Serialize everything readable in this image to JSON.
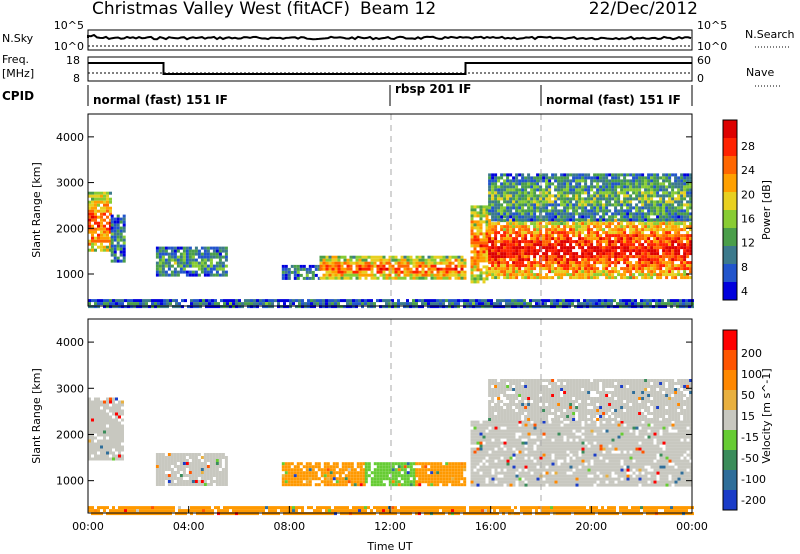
{
  "header": {
    "station": "Christmas Valley West (fitACF)",
    "beam": "Beam 12",
    "date": "22/Dec/2012"
  },
  "top_panels": {
    "nsky_label": "N.Sky",
    "nsky_ticks": [
      "10^5",
      "10^0"
    ],
    "nsearch_label": "N.Search",
    "nsearch_ticks": [
      "10^5",
      "10^0"
    ],
    "freq_label_1": "Freq.",
    "freq_label_2": "[MHz]",
    "freq_ticks": [
      "18",
      "8"
    ],
    "nave_label": "Nave",
    "nave_ticks": [
      "60",
      "0"
    ],
    "cpid_label": "CPID",
    "cpid_modes": [
      {
        "label": "normal (fast) 151 IF",
        "start_hour": 0
      },
      {
        "label": "rbsp 201 IF",
        "start_hour": 12
      },
      {
        "label": "normal (fast) 151 IF",
        "start_hour": 18
      }
    ]
  },
  "chart_data": [
    {
      "type": "heatmap",
      "parameter": "power",
      "ylabel": "Slant Range [km]",
      "ylim": [
        300,
        4500
      ],
      "yticks": [
        1000,
        2000,
        3000,
        4000
      ],
      "xlim_hours": [
        0,
        24
      ],
      "colorbar_label": "Power [dB]",
      "colorbar_ticks": [
        "28",
        "24",
        "20",
        "16",
        "12",
        "8",
        "4"
      ],
      "colorscale": [
        "#0000dd",
        "#2255cc",
        "#3c7a8c",
        "#4a9e4a",
        "#88cc33",
        "#e8d020",
        "#ffa000",
        "#ff6600",
        "#ff2200",
        "#dd0000"
      ],
      "echo_regions": [
        {
          "t0": 0.0,
          "t1": 0.9,
          "r0": 1500,
          "r1": 2800,
          "level": 0.85
        },
        {
          "t0": 0.9,
          "t1": 1.4,
          "r0": 1300,
          "r1": 2300,
          "level": 0.3
        },
        {
          "t0": 2.7,
          "t1": 5.5,
          "r0": 950,
          "r1": 1600,
          "level": 0.35
        },
        {
          "t0": 7.7,
          "t1": 9.2,
          "r0": 900,
          "r1": 1200,
          "level": 0.3
        },
        {
          "t0": 9.2,
          "t1": 15.0,
          "r0": 900,
          "r1": 1400,
          "level": 0.8
        },
        {
          "t0": 15.2,
          "t1": 15.9,
          "r0": 800,
          "r1": 2500,
          "level": 0.75
        },
        {
          "t0": 15.9,
          "t1": 24.0,
          "r0": 900,
          "r1": 2200,
          "level": 0.95
        },
        {
          "t0": 15.9,
          "t1": 24.0,
          "r0": 2200,
          "r1": 3200,
          "level": 0.4
        },
        {
          "t0": 0.0,
          "t1": 24.0,
          "r0": 300,
          "r1": 450,
          "level": 0.25
        }
      ]
    },
    {
      "type": "heatmap",
      "parameter": "velocity",
      "ylabel": "Slant Range [km]",
      "ylim": [
        300,
        4500
      ],
      "yticks": [
        1000,
        2000,
        3000,
        4000
      ],
      "xlim_hours": [
        0,
        24
      ],
      "xticks": [
        "00:00",
        "04:00",
        "08:00",
        "12:00",
        "16:00",
        "20:00",
        "00:00"
      ],
      "xlabel": "Time UT",
      "colorbar_label": "Velocity [m s^-1]",
      "colorbar_ticks": [
        "200",
        "100",
        "50",
        "15",
        "-15",
        "-50",
        "-100",
        "-200"
      ],
      "colorscale": [
        "#1a3cc8",
        "#2f6e9a",
        "#3a8c5a",
        "#66cc33",
        "#c8c8c0",
        "#e8b040",
        "#ff8800",
        "#ff5500",
        "#ff0000"
      ],
      "echo_regions": [
        {
          "t0": 0.0,
          "t1": 1.4,
          "r0": 1500,
          "r1": 2800,
          "color": "#c8c8c0"
        },
        {
          "t0": 2.7,
          "t1": 5.5,
          "r0": 950,
          "r1": 1600,
          "color": "#c8c8c0"
        },
        {
          "t0": 7.7,
          "t1": 11.0,
          "r0": 900,
          "r1": 1400,
          "color": "#ff9900"
        },
        {
          "t0": 11.0,
          "t1": 13.0,
          "r0": 900,
          "r1": 1400,
          "color": "#66cc33"
        },
        {
          "t0": 13.0,
          "t1": 15.0,
          "r0": 900,
          "r1": 1400,
          "color": "#ff9900"
        },
        {
          "t0": 15.2,
          "t1": 24.0,
          "r0": 900,
          "r1": 2300,
          "color": "#c8c8c0"
        },
        {
          "t0": 15.9,
          "t1": 24.0,
          "r0": 2300,
          "r1": 3200,
          "color": "#c8c8c0"
        },
        {
          "t0": 0.0,
          "t1": 24.0,
          "r0": 300,
          "r1": 450,
          "color": "#ff9900"
        }
      ]
    }
  ]
}
